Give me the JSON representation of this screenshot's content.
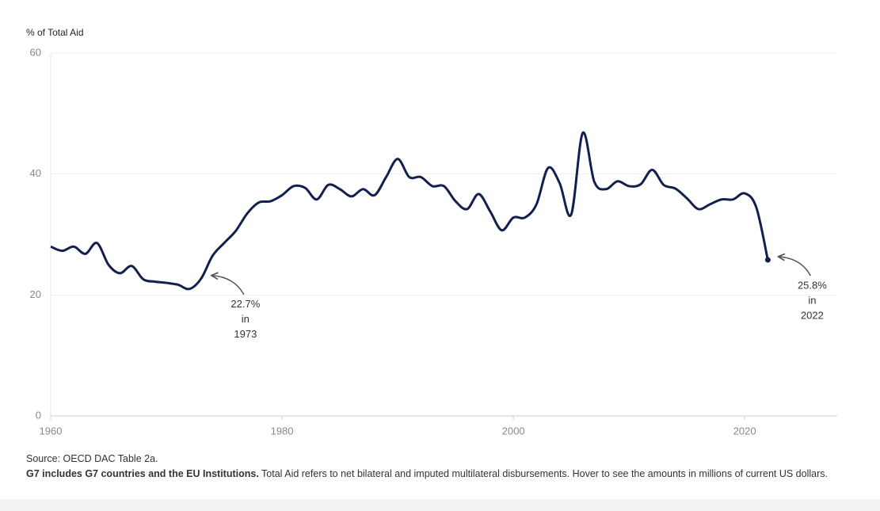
{
  "chart_data": {
    "type": "line",
    "y_label": "% of Total Aid",
    "x": [
      1960,
      1961,
      1962,
      1963,
      1964,
      1965,
      1966,
      1967,
      1968,
      1969,
      1970,
      1971,
      1972,
      1973,
      1974,
      1975,
      1976,
      1977,
      1978,
      1979,
      1980,
      1981,
      1982,
      1983,
      1984,
      1985,
      1986,
      1987,
      1988,
      1989,
      1990,
      1991,
      1992,
      1993,
      1994,
      1995,
      1996,
      1997,
      1998,
      1999,
      2000,
      2001,
      2002,
      2003,
      2004,
      2005,
      2006,
      2007,
      2008,
      2009,
      2010,
      2011,
      2012,
      2013,
      2014,
      2015,
      2016,
      2017,
      2018,
      2019,
      2020,
      2021,
      2022
    ],
    "series": [
      {
        "name": "G7",
        "color": "#12204f",
        "values": [
          28,
          27.3,
          28,
          26.8,
          28.6,
          25,
          23.6,
          24.8,
          22.6,
          22.2,
          22,
          21.7,
          21,
          22.7,
          26.5,
          28.6,
          30.6,
          33.5,
          35.3,
          35.5,
          36.5,
          38,
          37.7,
          35.8,
          38.2,
          37.5,
          36.3,
          37.5,
          36.5,
          39.5,
          42.5,
          39.5,
          39.5,
          38,
          38,
          35.5,
          34.2,
          36.7,
          33.8,
          30.7,
          32.8,
          32.8,
          35,
          41,
          38.5,
          33.3,
          46.8,
          38.7,
          37.5,
          38.8,
          38,
          38.3,
          40.7,
          38.2,
          37.6,
          36,
          34.2,
          35,
          35.8,
          35.8,
          36.8,
          34.5,
          25.8
        ]
      }
    ],
    "xlim": [
      1960,
      2028
    ],
    "xticks": [
      1960,
      1980,
      2000,
      2020
    ],
    "ylim": [
      0,
      60
    ],
    "yticks": [
      0,
      20,
      40,
      60
    ],
    "grid": true,
    "annotations": [
      {
        "x": 1973,
        "text": [
          "22.7%",
          "in",
          "1973"
        ]
      },
      {
        "x": 2022,
        "text": [
          "25.8%",
          "in",
          "2022"
        ]
      }
    ],
    "source": "Source: OECD DAC Table 2a.",
    "note_bold": "G7 includes G7 countries and the EU Institutions.",
    "note": "Total Aid refers to net bilateral and imputed multilateral disbursements. Hover to see the amounts in millions of current US dollars."
  }
}
